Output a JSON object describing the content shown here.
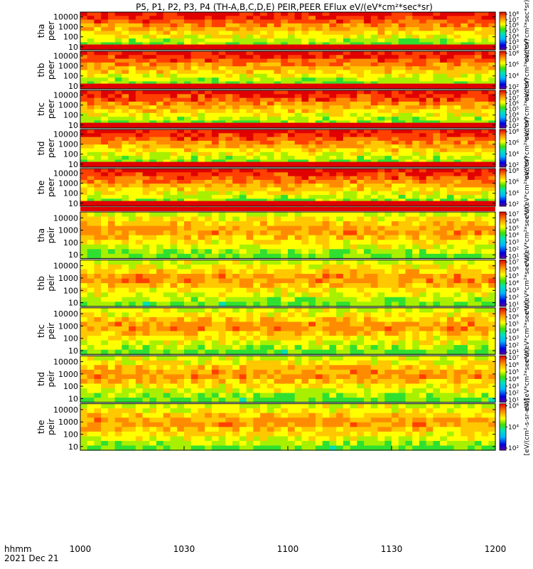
{
  "chart_data": {
    "type": "heatmap",
    "title": "P5, P1, P2, P3, P4 (TH-A,B,C,D,E) PEIR,PEER EFlux eV/(eV*cm²*sec*sr)",
    "xlabel": "hhmm",
    "date_label": "2021 Dec 21",
    "x_ticks": [
      "1000",
      "1030",
      "1100",
      "1130",
      "1200"
    ],
    "x_range": [
      "10:00",
      "12:00"
    ],
    "y_scale": "log",
    "y_range": [
      5,
      30000
    ],
    "y_ticks": [
      "10",
      "100",
      "1000",
      "10000"
    ],
    "colorscale": "rainbow (violet to red)",
    "panels": [
      {
        "probe": "tha",
        "species": "peer",
        "ylabel_top": "tha",
        "ylabel_bottom": "peer",
        "cbar_ticks": [
          "10²",
          "10³",
          "10⁴",
          "10⁵",
          "10⁶",
          "10⁷",
          "10⁸"
        ],
        "cbar_title": "eV/(eV*cm²*sec*sr)"
      },
      {
        "probe": "thb",
        "species": "peer",
        "ylabel_top": "thb",
        "ylabel_bottom": "peer",
        "cbar_ticks": [
          "10²",
          "10⁴",
          "10⁶",
          "10⁸"
        ],
        "cbar_title": "eV/(eV*cm²*sec*sr)"
      },
      {
        "probe": "thc",
        "species": "peer",
        "ylabel_top": "thc",
        "ylabel_bottom": "peer",
        "cbar_ticks": [
          "10²",
          "10³",
          "10⁴",
          "10⁵",
          "10⁶",
          "10⁷",
          "10⁸"
        ],
        "cbar_title": "eV/(eV*cm²*sec*sr)"
      },
      {
        "probe": "thd",
        "species": "peer",
        "ylabel_top": "thd",
        "ylabel_bottom": "peer",
        "cbar_ticks": [
          "10²",
          "10⁴",
          "10⁶",
          "10⁸"
        ],
        "cbar_title": "eV/(eV*cm²*sec*sr)"
      },
      {
        "probe": "the",
        "species": "peer",
        "ylabel_top": "the",
        "ylabel_bottom": "peer",
        "cbar_ticks": [
          "10²",
          "10⁴",
          "10⁶",
          "10⁸"
        ],
        "cbar_title": "eV/(eV*cm²*sec*sr)"
      },
      {
        "probe": "tha",
        "species": "peir",
        "ylabel_top": "tha",
        "ylabel_bottom": "peir",
        "cbar_ticks": [
          "10¹",
          "10²",
          "10³",
          "10⁴",
          "10⁵",
          "10⁶",
          "10⁷"
        ],
        "cbar_title": "eV/(eV*cm²*sec*sr)"
      },
      {
        "probe": "thb",
        "species": "peir",
        "ylabel_top": "thb",
        "ylabel_bottom": "peir",
        "cbar_ticks": [
          "10¹",
          "10²",
          "10³",
          "10⁴",
          "10⁵",
          "10⁶",
          "10⁷"
        ],
        "cbar_title": "eV/(eV*cm²*sec*sr)"
      },
      {
        "probe": "thc",
        "species": "peir",
        "ylabel_top": "thc",
        "ylabel_bottom": "peir",
        "cbar_ticks": [
          "10¹",
          "10²",
          "10³",
          "10⁴",
          "10⁵",
          "10⁶",
          "10⁷"
        ],
        "cbar_title": "eV/(eV*cm²*sec*sr)"
      },
      {
        "probe": "thd",
        "species": "peir",
        "ylabel_top": "thd",
        "ylabel_bottom": "peir",
        "cbar_ticks": [
          "10¹",
          "10²",
          "10³",
          "10⁴",
          "10⁵",
          "10⁶",
          "10⁷"
        ],
        "cbar_title": "eV/(eV*cm²*sec*sr)"
      },
      {
        "probe": "the",
        "species": "peir",
        "ylabel_top": "the",
        "ylabel_bottom": "peir",
        "cbar_ticks": [
          "10²",
          "10⁴",
          "10⁶"
        ],
        "cbar_title": "[eV/(cm²-s-sr-eV)]"
      }
    ]
  }
}
